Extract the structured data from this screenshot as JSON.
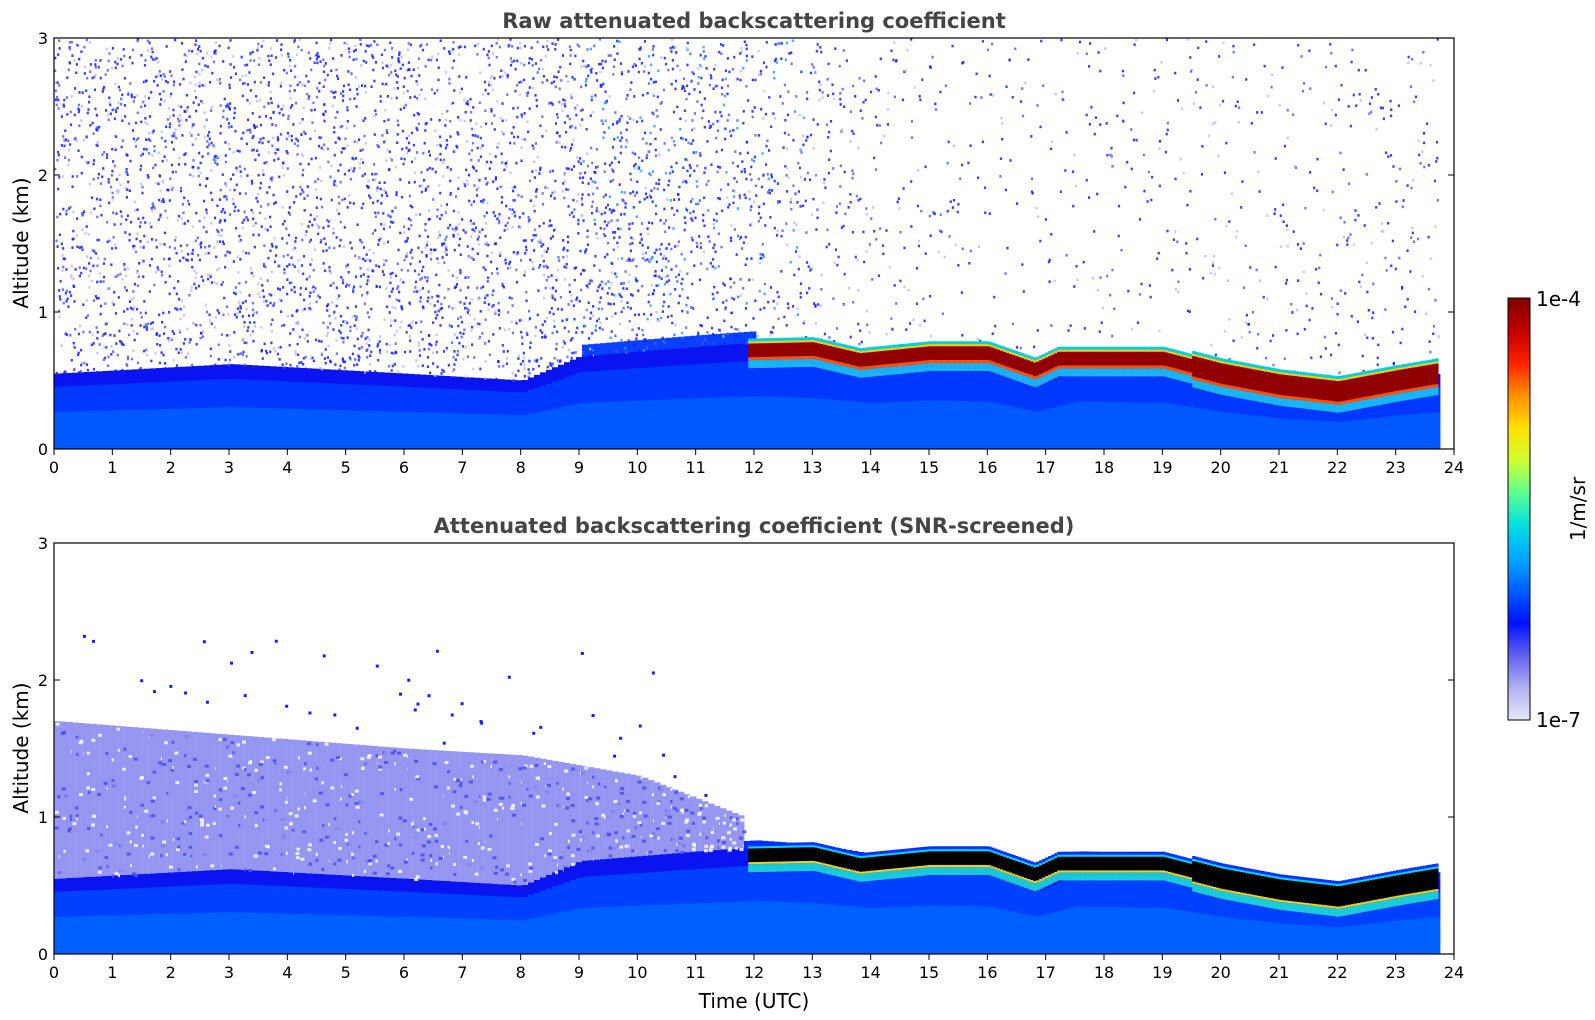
{
  "chart_data": [
    {
      "type": "heatmap",
      "title": "Raw attenuated backscattering coefficient",
      "ylabel": "Altitude (km)",
      "xlabel": "",
      "xlim": [
        0,
        24
      ],
      "ylim": [
        0,
        3
      ],
      "x_ticks": [
        "0",
        "1",
        "2",
        "3",
        "4",
        "5",
        "6",
        "7",
        "8",
        "9",
        "10",
        "11",
        "12",
        "13",
        "14",
        "15",
        "16",
        "17",
        "18",
        "19",
        "20",
        "21",
        "22",
        "23",
        "24"
      ],
      "y_ticks": [
        "0",
        "1",
        "2",
        "3"
      ],
      "data_end_time": 23.7,
      "color_scale": "log",
      "features": {
        "boundary_layer_top_km": [
          [
            0,
            0.55
          ],
          [
            3,
            0.62
          ],
          [
            6,
            0.55
          ],
          [
            8,
            0.5
          ],
          [
            9,
            0.68
          ],
          [
            11,
            0.75
          ],
          [
            12,
            0.78
          ],
          [
            13,
            0.75
          ],
          [
            14,
            0.68
          ],
          [
            15,
            0.72
          ],
          [
            16,
            0.7
          ],
          [
            16.8,
            0.55
          ],
          [
            17.5,
            0.7
          ],
          [
            19,
            0.68
          ],
          [
            20,
            0.55
          ],
          [
            21,
            0.45
          ],
          [
            22,
            0.4
          ],
          [
            23,
            0.5
          ],
          [
            23.7,
            0.55
          ]
        ],
        "cloud_layer_km": [
          [
            11.9,
            0.72
          ],
          [
            13,
            0.73
          ],
          [
            13.8,
            0.65
          ],
          [
            15,
            0.7
          ],
          [
            16,
            0.7
          ],
          [
            16.8,
            0.58
          ],
          [
            17.2,
            0.66
          ],
          [
            19,
            0.66
          ],
          [
            20,
            0.55
          ],
          [
            21,
            0.47
          ],
          [
            22,
            0.42
          ],
          [
            23,
            0.5
          ],
          [
            23.7,
            0.55
          ]
        ],
        "noise_level": [
          [
            0,
            0.9
          ],
          [
            6,
            0.95
          ],
          [
            10,
            0.9
          ],
          [
            12,
            0.6
          ],
          [
            14,
            0.25
          ],
          [
            16,
            0.12
          ],
          [
            20,
            0.18
          ],
          [
            23.7,
            0.25
          ]
        ]
      }
    },
    {
      "type": "heatmap",
      "title": "Attenuated backscattering coefficient (SNR-screened)",
      "ylabel": "Altitude (km)",
      "xlabel": "Time (UTC)",
      "xlim": [
        0,
        24
      ],
      "ylim": [
        0,
        3
      ],
      "x_ticks": [
        "0",
        "1",
        "2",
        "3",
        "4",
        "5",
        "6",
        "7",
        "8",
        "9",
        "10",
        "11",
        "12",
        "13",
        "14",
        "15",
        "16",
        "17",
        "18",
        "19",
        "20",
        "21",
        "22",
        "23",
        "24"
      ],
      "y_ticks": [
        "0",
        "1",
        "2",
        "3"
      ],
      "data_end_time": 23.7,
      "color_scale": "log",
      "features": {
        "screened_aerosol_top_km": [
          [
            0,
            1.7
          ],
          [
            3,
            1.6
          ],
          [
            6,
            1.5
          ],
          [
            8,
            1.45
          ],
          [
            10,
            1.3
          ],
          [
            11.8,
            1.0
          ]
        ],
        "cloud_layer_km": [
          [
            11.9,
            0.72
          ],
          [
            13,
            0.73
          ],
          [
            13.8,
            0.65
          ],
          [
            15,
            0.7
          ],
          [
            16,
            0.7
          ],
          [
            16.8,
            0.58
          ],
          [
            17.2,
            0.66
          ],
          [
            19,
            0.66
          ],
          [
            20,
            0.55
          ],
          [
            21,
            0.47
          ],
          [
            22,
            0.42
          ],
          [
            23,
            0.5
          ],
          [
            23.7,
            0.55
          ]
        ]
      }
    }
  ],
  "colorbar": {
    "label": "1/m/sr",
    "max_label": "1e-4",
    "min_label": "1e-7",
    "min_value": 1e-07,
    "max_value": 0.0001,
    "colormap": "jet-like",
    "stops": [
      "#e8e8f8",
      "#b0b0f0",
      "#6060f0",
      "#0010ff",
      "#0060ff",
      "#00a8ff",
      "#00e0e0",
      "#60ff90",
      "#d0ff30",
      "#ffe000",
      "#ff9000",
      "#ff2000",
      "#c00000",
      "#800000"
    ]
  }
}
